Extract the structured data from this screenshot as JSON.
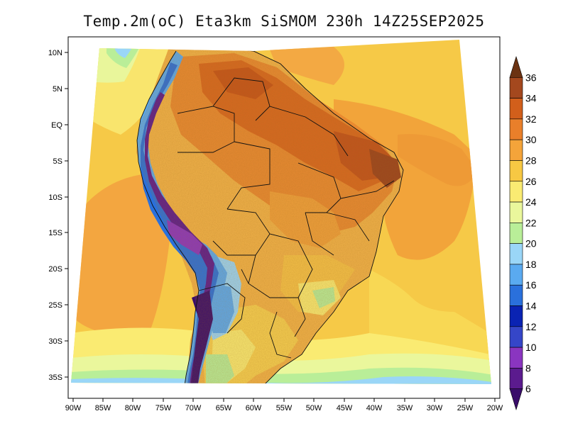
{
  "title": "Temp.2m(oC) Eta3km SiSMOM 230h 14Z25SEP2025",
  "lat_labels": [
    "10N",
    "5N",
    "EQ",
    "5S",
    "10S",
    "15S",
    "20S",
    "25S",
    "30S",
    "35S"
  ],
  "lon_labels": [
    "90W",
    "85W",
    "80W",
    "75W",
    "70W",
    "65W",
    "60W",
    "55W",
    "50W",
    "45W",
    "40W",
    "35W",
    "30W",
    "25W",
    "20W"
  ],
  "colorbar": {
    "labels": [
      "36",
      "34",
      "32",
      "30",
      "28",
      "26",
      "24",
      "22",
      "20",
      "18",
      "16",
      "14",
      "12",
      "10",
      "8",
      "6"
    ],
    "colors": [
      "#6b3212",
      "#a4481e",
      "#d25f1b",
      "#e97f2a",
      "#f4a43a",
      "#f7c843",
      "#faeb72",
      "#eaf79c",
      "#b9ee98",
      "#9ad6f7",
      "#5aaaf0",
      "#2a70dc",
      "#0a23b3",
      "#3546c8",
      "#8a35c0",
      "#5b1b8e",
      "#3a0d6a"
    ]
  }
}
